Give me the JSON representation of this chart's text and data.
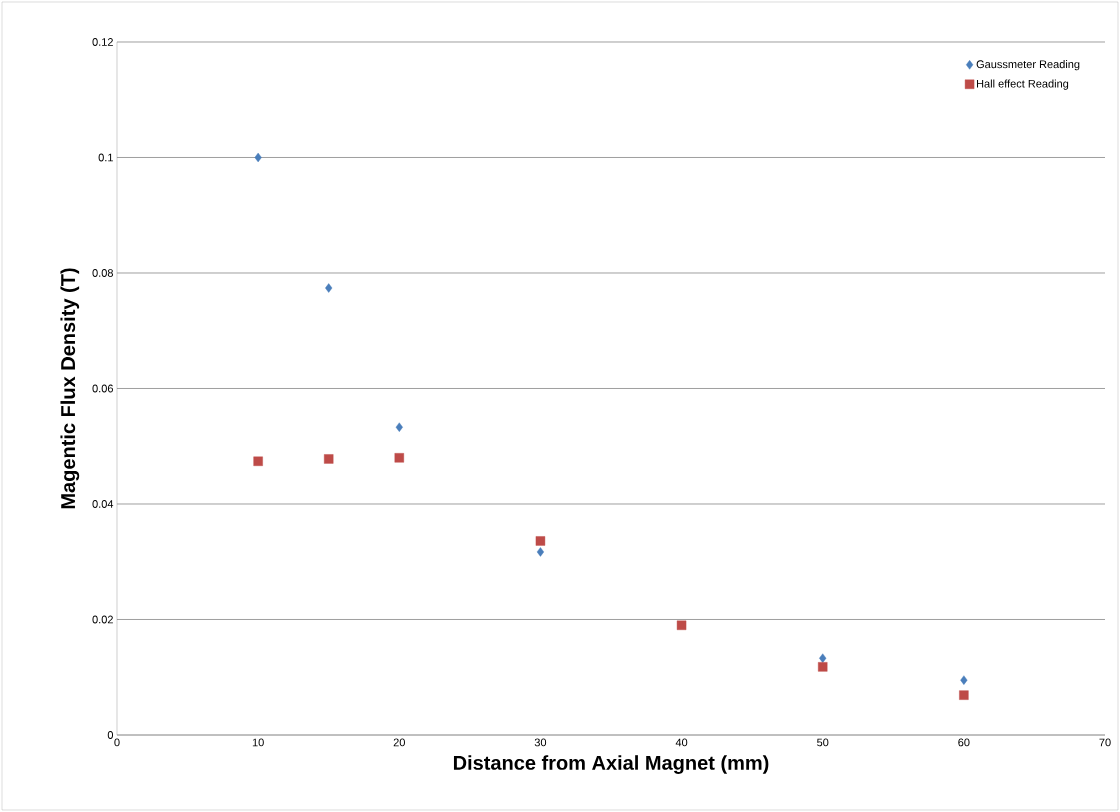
{
  "chart_data": {
    "type": "scatter",
    "xlabel": "Distance from Axial Magnet (mm)",
    "ylabel": "Magentic Flux Density (T)",
    "x": [
      10,
      15,
      20,
      30,
      40,
      50,
      60
    ],
    "series": [
      {
        "name": "Gaussmeter Reading",
        "color": "#4a7ebb",
        "marker": "diamond",
        "values": [
          0.1,
          0.0774,
          0.0533,
          0.0317,
          null,
          0.0133,
          0.0095
        ]
      },
      {
        "name": "Hall effect Reading",
        "color": "#be4b48",
        "marker": "square",
        "values": [
          0.0474,
          0.0478,
          0.048,
          0.0336,
          0.019,
          0.0118,
          0.0069
        ]
      }
    ],
    "xlim": [
      0,
      70
    ],
    "xticks": [
      0,
      10,
      20,
      30,
      40,
      50,
      60,
      70
    ],
    "ylim": [
      0,
      0.12
    ],
    "yticks": [
      0,
      0.02,
      0.04,
      0.06,
      0.08,
      0.1,
      0.12
    ],
    "grid": "y",
    "legend": "top right"
  }
}
